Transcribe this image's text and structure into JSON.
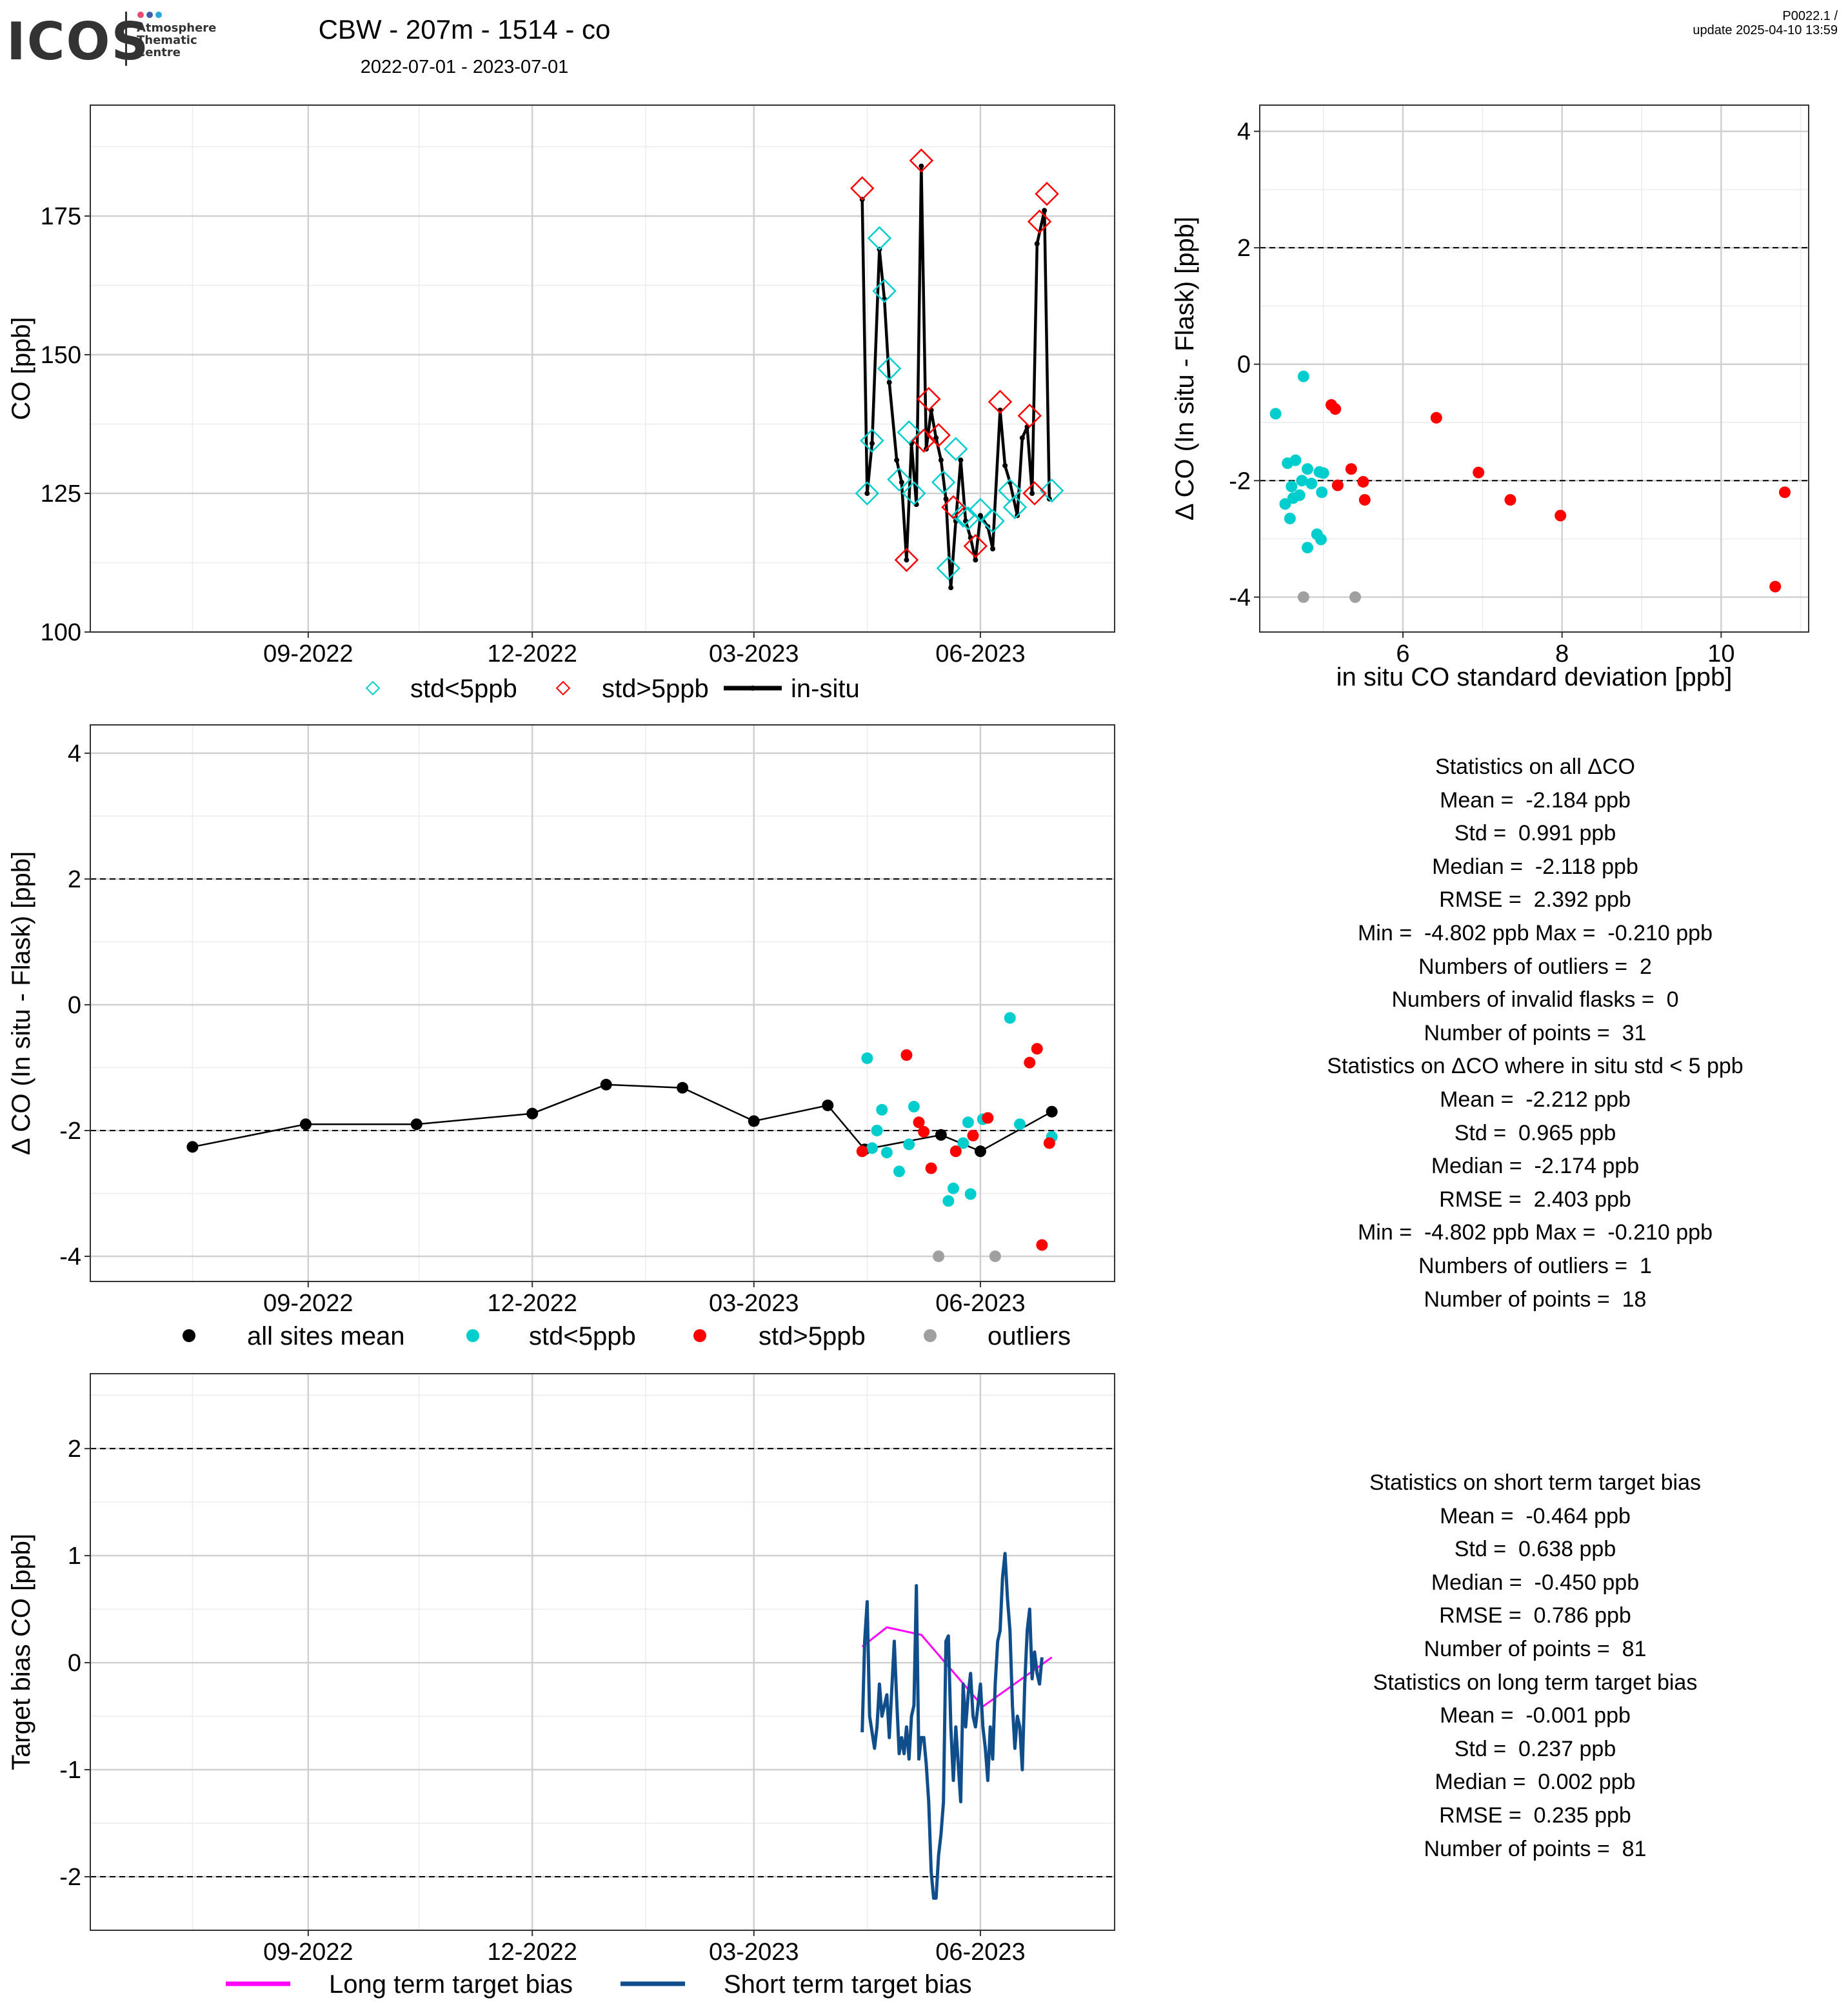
{
  "header": {
    "logo": "ICOS",
    "logo_sub": [
      "Atmosphere",
      "Thematic",
      "Centre"
    ],
    "title": "CBW - 207m - 1514 - co",
    "period": "2022-07-01 - 2023-07-01",
    "version": "P0022.1 /",
    "update": "update  2025-04-10 13:59"
  },
  "colors": {
    "std_lt5": "#00CDCD",
    "std_gt5": "#FF0000",
    "outlier": "#A0A0A0",
    "long_term": "#FF00FF",
    "short_term": "#104E8B",
    "insitu": "#000000"
  },
  "chart_data": [
    {
      "id": "timeseries",
      "type": "line",
      "ylabel": "CO [ppb]",
      "x_ticks": [
        "09-2022",
        "12-2022",
        "03-2023",
        "06-2023"
      ],
      "ylim": [
        100,
        195
      ],
      "y_ticks": [
        100,
        125,
        150,
        175
      ],
      "grid": true,
      "legend": [
        "std<5ppb",
        "std>5ppb",
        "in-situ"
      ],
      "legend_position": "bottom",
      "insitu": [
        {
          "x": "2023-04-14",
          "y": 178
        },
        {
          "x": "2023-04-16",
          "y": 125
        },
        {
          "x": "2023-04-18",
          "y": 134
        },
        {
          "x": "2023-04-21",
          "y": 169
        },
        {
          "x": "2023-04-23",
          "y": 160
        },
        {
          "x": "2023-04-25",
          "y": 145
        },
        {
          "x": "2023-04-28",
          "y": 131
        },
        {
          "x": "2023-04-30",
          "y": 127
        },
        {
          "x": "2023-05-02",
          "y": 113
        },
        {
          "x": "2023-05-04",
          "y": 134
        },
        {
          "x": "2023-05-06",
          "y": 123
        },
        {
          "x": "2023-05-08",
          "y": 184
        },
        {
          "x": "2023-05-10",
          "y": 133
        },
        {
          "x": "2023-05-12",
          "y": 140
        },
        {
          "x": "2023-05-14",
          "y": 135
        },
        {
          "x": "2023-05-16",
          "y": 131
        },
        {
          "x": "2023-05-18",
          "y": 124
        },
        {
          "x": "2023-05-20",
          "y": 108
        },
        {
          "x": "2023-05-22",
          "y": 120
        },
        {
          "x": "2023-05-24",
          "y": 131
        },
        {
          "x": "2023-05-26",
          "y": 120
        },
        {
          "x": "2023-05-28",
          "y": 117
        },
        {
          "x": "2023-05-30",
          "y": 113
        },
        {
          "x": "2023-06-01",
          "y": 121
        },
        {
          "x": "2023-06-04",
          "y": 119
        },
        {
          "x": "2023-06-06",
          "y": 115
        },
        {
          "x": "2023-06-09",
          "y": 140
        },
        {
          "x": "2023-06-11",
          "y": 130
        },
        {
          "x": "2023-06-13",
          "y": 127
        },
        {
          "x": "2023-06-16",
          "y": 121
        },
        {
          "x": "2023-06-18",
          "y": 135
        },
        {
          "x": "2023-06-20",
          "y": 137
        },
        {
          "x": "2023-06-22",
          "y": 125
        },
        {
          "x": "2023-06-24",
          "y": 170
        },
        {
          "x": "2023-06-27",
          "y": 176
        },
        {
          "x": "2023-06-29",
          "y": 124
        }
      ],
      "flask_lt5": [
        {
          "x": "2023-04-16",
          "y": 125
        },
        {
          "x": "2023-04-18",
          "y": 134.5
        },
        {
          "x": "2023-04-21",
          "y": 171
        },
        {
          "x": "2023-04-23",
          "y": 161.5
        },
        {
          "x": "2023-04-25",
          "y": 147.5
        },
        {
          "x": "2023-04-29",
          "y": 127.5
        },
        {
          "x": "2023-05-03",
          "y": 136
        },
        {
          "x": "2023-05-05",
          "y": 125
        },
        {
          "x": "2023-05-17",
          "y": 127
        },
        {
          "x": "2023-05-19",
          "y": 111.5
        },
        {
          "x": "2023-05-22",
          "y": 133
        },
        {
          "x": "2023-05-25",
          "y": 121
        },
        {
          "x": "2023-05-27",
          "y": 120.5
        },
        {
          "x": "2023-06-01",
          "y": 122
        },
        {
          "x": "2023-06-06",
          "y": 120
        },
        {
          "x": "2023-06-13",
          "y": 125.5
        },
        {
          "x": "2023-06-15",
          "y": 122.5
        },
        {
          "x": "2023-06-30",
          "y": 125.5
        }
      ],
      "flask_gt5": [
        {
          "x": "2023-04-14",
          "y": 180
        },
        {
          "x": "2023-05-02",
          "y": 113
        },
        {
          "x": "2023-05-08",
          "y": 185
        },
        {
          "x": "2023-05-09",
          "y": 134.5
        },
        {
          "x": "2023-05-11",
          "y": 142
        },
        {
          "x": "2023-05-15",
          "y": 135.5
        },
        {
          "x": "2023-05-21",
          "y": 122.5
        },
        {
          "x": "2023-05-30",
          "y": 115.5
        },
        {
          "x": "2023-06-09",
          "y": 141.5
        },
        {
          "x": "2023-06-21",
          "y": 139
        },
        {
          "x": "2023-06-23",
          "y": 125
        },
        {
          "x": "2023-06-25",
          "y": 174
        },
        {
          "x": "2023-06-28",
          "y": 179
        }
      ]
    },
    {
      "id": "scatter_std",
      "type": "scatter",
      "xlabel": "in situ CO standard deviation [ppb]",
      "ylabel": "Δ CO (In situ - Flask) [ppb]",
      "xlim": [
        4.2,
        11.1
      ],
      "ylim": [
        -4.6,
        4.45
      ],
      "x_ticks": [
        6,
        8,
        10
      ],
      "y_ticks": [
        -4,
        -2,
        0,
        2,
        4
      ],
      "hlines": [
        2,
        -2
      ],
      "grid": true,
      "points_lt5": [
        {
          "x": 4.75,
          "y": -0.21
        },
        {
          "x": 4.4,
          "y": -0.85
        },
        {
          "x": 4.55,
          "y": -1.7
        },
        {
          "x": 4.65,
          "y": -1.65
        },
        {
          "x": 4.8,
          "y": -1.8
        },
        {
          "x": 4.95,
          "y": -1.85
        },
        {
          "x": 5.0,
          "y": -1.87
        },
        {
          "x": 4.6,
          "y": -2.1
        },
        {
          "x": 4.73,
          "y": -2.0
        },
        {
          "x": 4.85,
          "y": -2.05
        },
        {
          "x": 4.98,
          "y": -2.2
        },
        {
          "x": 4.62,
          "y": -2.3
        },
        {
          "x": 4.7,
          "y": -2.25
        },
        {
          "x": 4.52,
          "y": -2.4
        },
        {
          "x": 4.58,
          "y": -2.65
        },
        {
          "x": 4.92,
          "y": -2.92
        },
        {
          "x": 4.97,
          "y": -3.01
        },
        {
          "x": 4.8,
          "y": -3.15
        }
      ],
      "points_gt5": [
        {
          "x": 5.1,
          "y": -0.7
        },
        {
          "x": 5.15,
          "y": -0.77
        },
        {
          "x": 6.42,
          "y": -0.92
        },
        {
          "x": 5.35,
          "y": -1.8
        },
        {
          "x": 6.95,
          "y": -1.86
        },
        {
          "x": 5.5,
          "y": -2.02
        },
        {
          "x": 5.18,
          "y": -2.08
        },
        {
          "x": 10.8,
          "y": -2.2
        },
        {
          "x": 5.52,
          "y": -2.33
        },
        {
          "x": 7.35,
          "y": -2.33
        },
        {
          "x": 7.98,
          "y": -2.6
        },
        {
          "x": 10.68,
          "y": -3.82
        }
      ],
      "outliers": [
        {
          "x": 4.75,
          "y": -4.0
        },
        {
          "x": 5.4,
          "y": -4.0
        }
      ]
    },
    {
      "id": "delta_time",
      "type": "scatter",
      "ylabel": "Δ CO (In situ - Flask) [ppb]",
      "x_ticks": [
        "09-2022",
        "12-2022",
        "03-2023",
        "06-2023"
      ],
      "ylim": [
        -4.4,
        4.45
      ],
      "y_ticks": [
        -4,
        -2,
        0,
        2,
        4
      ],
      "hlines": [
        2,
        -2
      ],
      "grid": true,
      "legend": [
        "all sites mean",
        "std<5ppb",
        "std>5ppb",
        "outliers"
      ],
      "legend_position": "bottom",
      "mean": [
        {
          "x": "2022-07-16",
          "y": -2.26
        },
        {
          "x": "2022-08-31",
          "y": -1.9
        },
        {
          "x": "2022-10-15",
          "y": -1.9
        },
        {
          "x": "2022-12-01",
          "y": -1.73
        },
        {
          "x": "2022-12-31",
          "y": -1.27
        },
        {
          "x": "2023-01-31",
          "y": -1.32
        },
        {
          "x": "2023-03-01",
          "y": -1.85
        },
        {
          "x": "2023-03-31",
          "y": -1.6
        },
        {
          "x": "2023-04-15",
          "y": -2.3
        },
        {
          "x": "2023-05-16",
          "y": -2.07
        },
        {
          "x": "2023-06-01",
          "y": -2.33
        },
        {
          "x": "2023-06-30",
          "y": -1.7
        }
      ],
      "points_lt5": [
        {
          "x": "2023-04-16",
          "y": -0.85
        },
        {
          "x": "2023-04-18",
          "y": -2.28
        },
        {
          "x": "2023-04-20",
          "y": -2.0
        },
        {
          "x": "2023-04-22",
          "y": -1.67
        },
        {
          "x": "2023-04-24",
          "y": -2.35
        },
        {
          "x": "2023-04-29",
          "y": -2.65
        },
        {
          "x": "2023-05-03",
          "y": -2.22
        },
        {
          "x": "2023-05-05",
          "y": -1.62
        },
        {
          "x": "2023-05-19",
          "y": -3.12
        },
        {
          "x": "2023-05-21",
          "y": -2.92
        },
        {
          "x": "2023-05-25",
          "y": -2.2
        },
        {
          "x": "2023-05-27",
          "y": -1.87
        },
        {
          "x": "2023-05-28",
          "y": -3.01
        },
        {
          "x": "2023-06-02",
          "y": -1.82
        },
        {
          "x": "2023-06-13",
          "y": -0.21
        },
        {
          "x": "2023-06-17",
          "y": -1.9
        },
        {
          "x": "2023-06-30",
          "y": -2.1
        }
      ],
      "points_gt5": [
        {
          "x": "2023-04-14",
          "y": -2.33
        },
        {
          "x": "2023-05-02",
          "y": -0.8
        },
        {
          "x": "2023-05-07",
          "y": -1.87
        },
        {
          "x": "2023-05-09",
          "y": -2.02
        },
        {
          "x": "2023-05-12",
          "y": -2.6
        },
        {
          "x": "2023-05-22",
          "y": -2.33
        },
        {
          "x": "2023-05-29",
          "y": -2.08
        },
        {
          "x": "2023-06-04",
          "y": -1.8
        },
        {
          "x": "2023-06-21",
          "y": -0.92
        },
        {
          "x": "2023-06-24",
          "y": -0.7
        },
        {
          "x": "2023-06-26",
          "y": -3.82
        },
        {
          "x": "2023-06-29",
          "y": -2.2
        }
      ],
      "outliers": [
        {
          "x": "2023-05-15",
          "y": -4.0
        },
        {
          "x": "2023-06-07",
          "y": -4.0
        }
      ]
    },
    {
      "id": "target_bias",
      "type": "line",
      "ylabel": "Target bias CO [ppb]",
      "x_ticks": [
        "09-2022",
        "12-2022",
        "03-2023",
        "06-2023"
      ],
      "ylim": [
        -2.5,
        2.7
      ],
      "y_ticks": [
        -2,
        -1,
        0,
        1,
        2
      ],
      "hlines": [
        2,
        -2
      ],
      "grid": true,
      "legend": [
        "Long term target bias",
        "Short term target bias"
      ],
      "legend_position": "bottom",
      "long_term": [
        {
          "x": "2023-04-14",
          "y": 0.15
        },
        {
          "x": "2023-04-24",
          "y": 0.33
        },
        {
          "x": "2023-05-08",
          "y": 0.26
        },
        {
          "x": "2023-06-02",
          "y": -0.41
        },
        {
          "x": "2023-06-30",
          "y": 0.05
        }
      ],
      "short_term": [
        {
          "x": "2023-04-14",
          "y": -0.65
        },
        {
          "x": "2023-04-15",
          "y": 0.2
        },
        {
          "x": "2023-04-16",
          "y": 0.57
        },
        {
          "x": "2023-04-17",
          "y": -0.5
        },
        {
          "x": "2023-04-19",
          "y": -0.8
        },
        {
          "x": "2023-04-20",
          "y": -0.6
        },
        {
          "x": "2023-04-21",
          "y": -0.2
        },
        {
          "x": "2023-04-22",
          "y": -0.5
        },
        {
          "x": "2023-04-24",
          "y": -0.3
        },
        {
          "x": "2023-04-25",
          "y": -0.7
        },
        {
          "x": "2023-04-27",
          "y": 0.2
        },
        {
          "x": "2023-04-28",
          "y": -0.35
        },
        {
          "x": "2023-04-29",
          "y": -0.85
        },
        {
          "x": "2023-04-30",
          "y": -0.7
        },
        {
          "x": "2023-05-01",
          "y": -0.85
        },
        {
          "x": "2023-05-02",
          "y": -0.6
        },
        {
          "x": "2023-05-03",
          "y": -0.9
        },
        {
          "x": "2023-05-04",
          "y": -0.5
        },
        {
          "x": "2023-05-05",
          "y": -0.4
        },
        {
          "x": "2023-05-06",
          "y": 0.72
        },
        {
          "x": "2023-05-07",
          "y": -0.9
        },
        {
          "x": "2023-05-08",
          "y": -0.7
        },
        {
          "x": "2023-05-09",
          "y": -0.7
        },
        {
          "x": "2023-05-10",
          "y": -0.95
        },
        {
          "x": "2023-05-11",
          "y": -1.3
        },
        {
          "x": "2023-05-12",
          "y": -1.95
        },
        {
          "x": "2023-05-13",
          "y": -2.2
        },
        {
          "x": "2023-05-14",
          "y": -2.2
        },
        {
          "x": "2023-05-15",
          "y": -1.8
        },
        {
          "x": "2023-05-16",
          "y": -1.6
        },
        {
          "x": "2023-05-17",
          "y": -1.3
        },
        {
          "x": "2023-05-18",
          "y": 0.2
        },
        {
          "x": "2023-05-19",
          "y": 0.25
        },
        {
          "x": "2023-05-20",
          "y": -0.6
        },
        {
          "x": "2023-05-21",
          "y": -1.1
        },
        {
          "x": "2023-05-22",
          "y": -0.6
        },
        {
          "x": "2023-05-24",
          "y": -1.3
        },
        {
          "x": "2023-05-25",
          "y": -0.2
        },
        {
          "x": "2023-05-26",
          "y": -0.6
        },
        {
          "x": "2023-05-27",
          "y": -0.3
        },
        {
          "x": "2023-05-28",
          "y": -0.1
        },
        {
          "x": "2023-05-29",
          "y": -0.5
        },
        {
          "x": "2023-05-30",
          "y": -0.6
        },
        {
          "x": "2023-06-01",
          "y": -0.2
        },
        {
          "x": "2023-06-02",
          "y": -0.6
        },
        {
          "x": "2023-06-03",
          "y": -0.8
        },
        {
          "x": "2023-06-04",
          "y": -1.1
        },
        {
          "x": "2023-06-05",
          "y": -0.6
        },
        {
          "x": "2023-06-06",
          "y": -0.9
        },
        {
          "x": "2023-06-07",
          "y": -0.2
        },
        {
          "x": "2023-06-08",
          "y": 0.2
        },
        {
          "x": "2023-06-09",
          "y": 0.3
        },
        {
          "x": "2023-06-10",
          "y": 0.8
        },
        {
          "x": "2023-06-11",
          "y": 1.02
        },
        {
          "x": "2023-06-12",
          "y": 0.6
        },
        {
          "x": "2023-06-13",
          "y": 0.3
        },
        {
          "x": "2023-06-14",
          "y": -0.4
        },
        {
          "x": "2023-06-15",
          "y": -0.8
        },
        {
          "x": "2023-06-16",
          "y": -0.5
        },
        {
          "x": "2023-06-17",
          "y": -0.6
        },
        {
          "x": "2023-06-18",
          "y": -1.0
        },
        {
          "x": "2023-06-19",
          "y": -0.2
        },
        {
          "x": "2023-06-20",
          "y": 0.3
        },
        {
          "x": "2023-06-21",
          "y": 0.5
        },
        {
          "x": "2023-06-22",
          "y": -0.15
        },
        {
          "x": "2023-06-23",
          "y": 0.1
        },
        {
          "x": "2023-06-24",
          "y": -0.1
        },
        {
          "x": "2023-06-25",
          "y": -0.2
        },
        {
          "x": "2023-06-26",
          "y": 0.05
        }
      ]
    }
  ],
  "stats": {
    "all": [
      "Statistics on all ΔCO",
      "Mean =  -2.184 ppb",
      "Std =  0.991 ppb",
      "Median =  -2.118 ppb",
      "RMSE =  2.392 ppb",
      "Min =  -4.802 ppb Max =  -0.210 ppb",
      "Numbers of outliers =  2",
      "Numbers of invalid flasks =  0",
      "Number of points =  31",
      "",
      "Statistics on ΔCO where in situ std < 5 ppb",
      "Mean =  -2.212 ppb",
      "Std =  0.965 ppb",
      "Median =  -2.174 ppb",
      "RMSE =  2.403 ppb",
      "Min =  -4.802 ppb Max =  -0.210 ppb",
      "Numbers of outliers =  1",
      "Number of points =  18"
    ],
    "target": [
      "Statistics on short term target bias",
      "Mean =  -0.464 ppb",
      "Std =  0.638 ppb",
      "Median =  -0.450 ppb",
      "RMSE =  0.786 ppb",
      "Number of points =  81",
      "",
      "Statistics on long term target bias",
      "Mean =  -0.001 ppb",
      "Std =  0.237 ppb",
      "Median =  0.002 ppb",
      "RMSE =  0.235 ppb",
      "Number of points =  81"
    ]
  }
}
